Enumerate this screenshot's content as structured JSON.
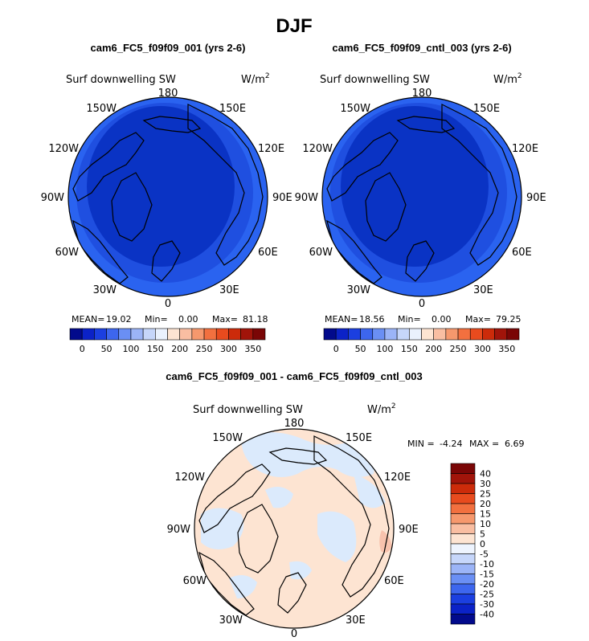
{
  "page": {
    "season_title": "DJF"
  },
  "colors": {
    "map_deep_blue": "#0a33c4",
    "map_mid_blue": "#1f4fe0",
    "map_light_blue": "#2a63f0",
    "diff_peach": "#fde4d2",
    "diff_lightblue": "#dbeafc",
    "diff_pink": "#f8c2ad",
    "abs_palette": [
      "#020a8c",
      "#0b22c7",
      "#1b3fe0",
      "#3d66ee",
      "#6a8ff4",
      "#9bb4f7",
      "#c6d6fa",
      "#eaf1fd",
      "#fde4d2",
      "#f9bea2",
      "#f6986d",
      "#f2703f",
      "#e84b1e",
      "#cc2b0a",
      "#a1140a",
      "#7a0606"
    ],
    "diff_palette": [
      "#020a8c",
      "#0b22c7",
      "#1b3fe0",
      "#3d66ee",
      "#6a8ff4",
      "#9bb4f7",
      "#c6d6fa",
      "#eef4fe",
      "#fde4d2",
      "#f9bea2",
      "#f6986d",
      "#f2703f",
      "#e84b1e",
      "#cc2b0a",
      "#a1140a",
      "#7a0606"
    ]
  },
  "chart_data": [
    {
      "type": "heatmap",
      "projection": "north-polar-stereographic",
      "title": "cam6_FC5_f09f09_001 (yrs 2-6)",
      "variable": "Surf downwelling SW",
      "units": "W/m",
      "units_superscript": "2",
      "longitude_labels": [
        "180",
        "150E",
        "120E",
        "90E",
        "60E",
        "30E",
        "0",
        "30W",
        "60W",
        "90W",
        "120W",
        "150W"
      ],
      "stats": {
        "mean_label": "MEAN=",
        "mean": "19.02",
        "min_label": "Min=",
        "min": "0.00",
        "max_label": "Max=",
        "max": "81.18"
      },
      "colorbar_ticks": [
        "0",
        "50",
        "100",
        "150",
        "200",
        "250",
        "300",
        "350"
      ]
    },
    {
      "type": "heatmap",
      "projection": "north-polar-stereographic",
      "title": "cam6_FC5_f09f09_cntl_003 (yrs 2-6)",
      "variable": "Surf downwelling SW",
      "units": "W/m",
      "units_superscript": "2",
      "longitude_labels": [
        "180",
        "150E",
        "120E",
        "90E",
        "60E",
        "30E",
        "0",
        "30W",
        "60W",
        "90W",
        "120W",
        "150W"
      ],
      "stats": {
        "mean_label": "MEAN=",
        "mean": "18.56",
        "min_label": "Min=",
        "min": "0.00",
        "max_label": "Max=",
        "max": "79.25"
      },
      "colorbar_ticks": [
        "0",
        "50",
        "100",
        "150",
        "200",
        "250",
        "300",
        "350"
      ]
    },
    {
      "type": "heatmap",
      "projection": "north-polar-stereographic",
      "title": "cam6_FC5_f09f09_001 - cam6_FC5_f09f09_cntl_003",
      "variable": "Surf downwelling SW",
      "units": "W/m",
      "units_superscript": "2",
      "longitude_labels": [
        "180",
        "150E",
        "120E",
        "90E",
        "60E",
        "30E",
        "0",
        "30W",
        "60W",
        "90W",
        "120W",
        "150W"
      ],
      "stats": {
        "min_label": "MIN =",
        "min": "-4.24",
        "max_label": "MAX =",
        "max": "6.69"
      },
      "colorbar_ticks": [
        "40",
        "30",
        "25",
        "20",
        "15",
        "10",
        "5",
        "0",
        "-5",
        "-10",
        "-15",
        "-20",
        "-25",
        "-30",
        "-40"
      ]
    }
  ]
}
